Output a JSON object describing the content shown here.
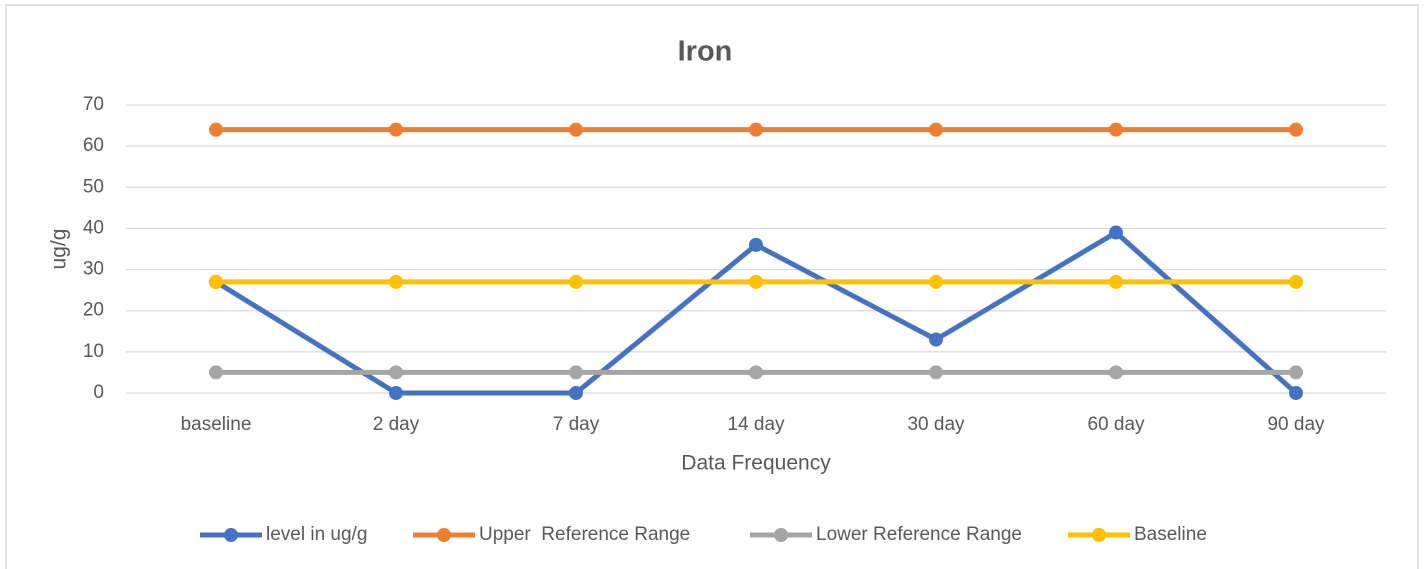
{
  "chart_data": {
    "type": "line",
    "title": "Iron",
    "x_label": "Data Frequency",
    "y_label": "ug/g",
    "categories": [
      "baseline",
      "2 day",
      "7 day",
      "14 day",
      "30 day",
      "60 day",
      "90 day"
    ],
    "series": [
      {
        "name": "level in ug/g",
        "color": "#4472c4",
        "values": [
          27,
          0,
          0,
          36,
          13,
          39,
          0
        ]
      },
      {
        "name": "Upper  Reference Range",
        "color": "#ed7d31",
        "values": [
          64,
          64,
          64,
          64,
          64,
          64,
          64
        ]
      },
      {
        "name": "Lower Reference Range",
        "color": "#a5a5a5",
        "values": [
          5,
          5,
          5,
          5,
          5,
          5,
          5
        ]
      },
      {
        "name": "Baseline",
        "color": "#ffc000",
        "values": [
          27,
          27,
          27,
          27,
          27,
          27,
          27
        ]
      }
    ],
    "ylim": [
      0,
      70
    ],
    "yticks": [
      0,
      10,
      20,
      30,
      40,
      50,
      60,
      70
    ],
    "grid": true,
    "legend": "bottom"
  }
}
